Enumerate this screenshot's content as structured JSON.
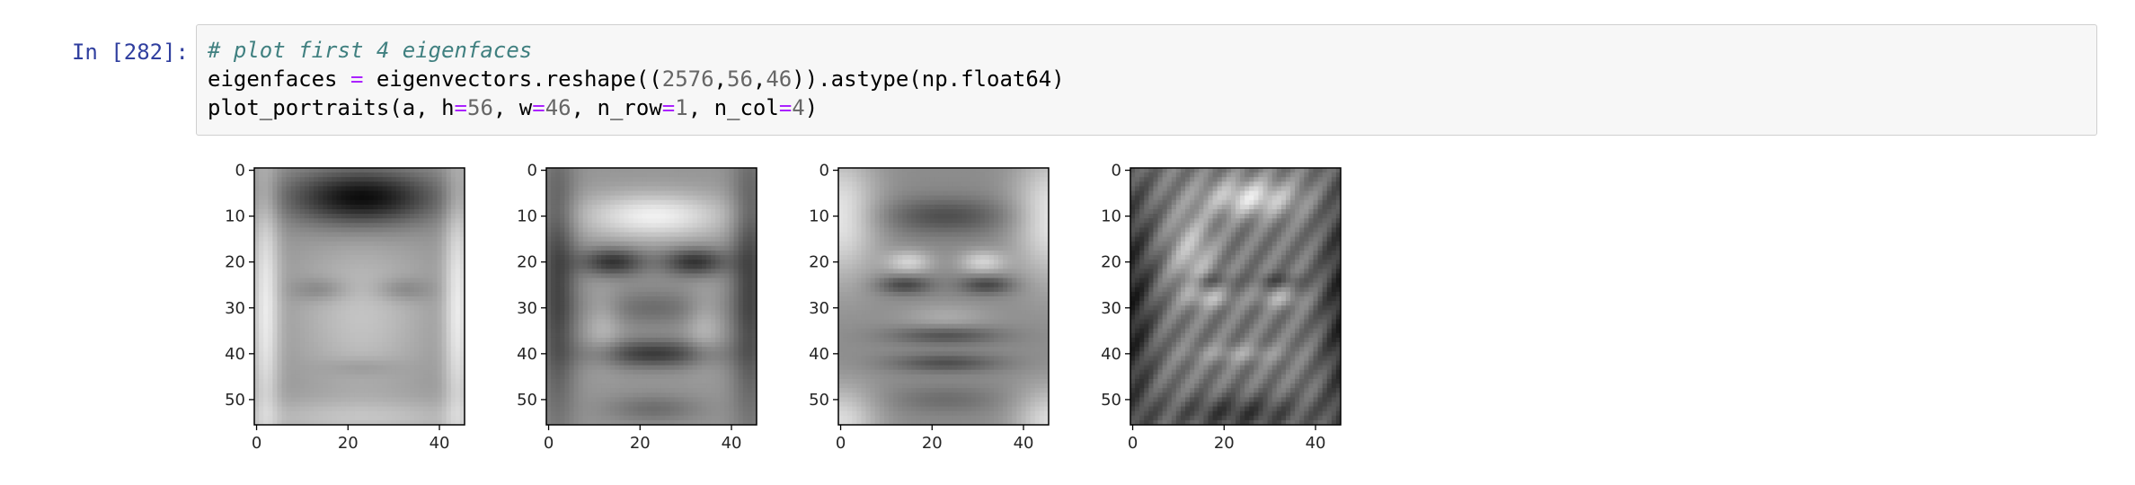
{
  "cell": {
    "prompt": "In [282]:",
    "code_lines": [
      [
        {
          "t": "# plot first 4 eigenfaces",
          "c": "comment"
        }
      ],
      [
        {
          "t": "eigenfaces ",
          "c": ""
        },
        {
          "t": "=",
          "c": "op"
        },
        {
          "t": " eigenvectors.reshape((",
          "c": ""
        },
        {
          "t": "2576",
          "c": "num"
        },
        {
          "t": ",",
          "c": ""
        },
        {
          "t": "56",
          "c": "num"
        },
        {
          "t": ",",
          "c": ""
        },
        {
          "t": "46",
          "c": "num"
        },
        {
          "t": ")).astype(np.float64)",
          "c": ""
        }
      ],
      [
        {
          "t": "plot_portraits(a, h",
          "c": ""
        },
        {
          "t": "=",
          "c": "op"
        },
        {
          "t": "56",
          "c": "num"
        },
        {
          "t": ", w",
          "c": ""
        },
        {
          "t": "=",
          "c": "op"
        },
        {
          "t": "46",
          "c": "num"
        },
        {
          "t": ", n_row",
          "c": ""
        },
        {
          "t": "=",
          "c": "op"
        },
        {
          "t": "1",
          "c": "num"
        },
        {
          "t": ", n_col",
          "c": ""
        },
        {
          "t": "=",
          "c": "op"
        },
        {
          "t": "4",
          "c": "num"
        },
        {
          "t": ")",
          "c": ""
        }
      ]
    ]
  },
  "output": {
    "chart_data": [
      {
        "type": "heatmap",
        "variant": "face1",
        "colormap": "gray",
        "image_shape": [
          56,
          46
        ],
        "xticks": [
          0,
          20,
          40
        ],
        "yticks": [
          0,
          10,
          20,
          30,
          40,
          50
        ],
        "xlim": [
          -0.5,
          45.5
        ],
        "ylim": [
          55.5,
          -0.5
        ]
      },
      {
        "type": "heatmap",
        "variant": "face2",
        "colormap": "gray",
        "image_shape": [
          56,
          46
        ],
        "xticks": [
          0,
          20,
          40
        ],
        "yticks": [
          0,
          10,
          20,
          30,
          40,
          50
        ],
        "xlim": [
          -0.5,
          45.5
        ],
        "ylim": [
          55.5,
          -0.5
        ]
      },
      {
        "type": "heatmap",
        "variant": "face3",
        "colormap": "gray",
        "image_shape": [
          56,
          46
        ],
        "xticks": [
          0,
          20,
          40
        ],
        "yticks": [
          0,
          10,
          20,
          30,
          40,
          50
        ],
        "xlim": [
          -0.5,
          45.5
        ],
        "ylim": [
          55.5,
          -0.5
        ]
      },
      {
        "type": "heatmap",
        "variant": "face4",
        "colormap": "gray",
        "image_shape": [
          56,
          46
        ],
        "xticks": [
          0,
          20,
          40
        ],
        "yticks": [
          0,
          10,
          20,
          30,
          40,
          50
        ],
        "xlim": [
          -0.5,
          45.5
        ],
        "ylim": [
          55.5,
          -0.5
        ]
      }
    ]
  }
}
